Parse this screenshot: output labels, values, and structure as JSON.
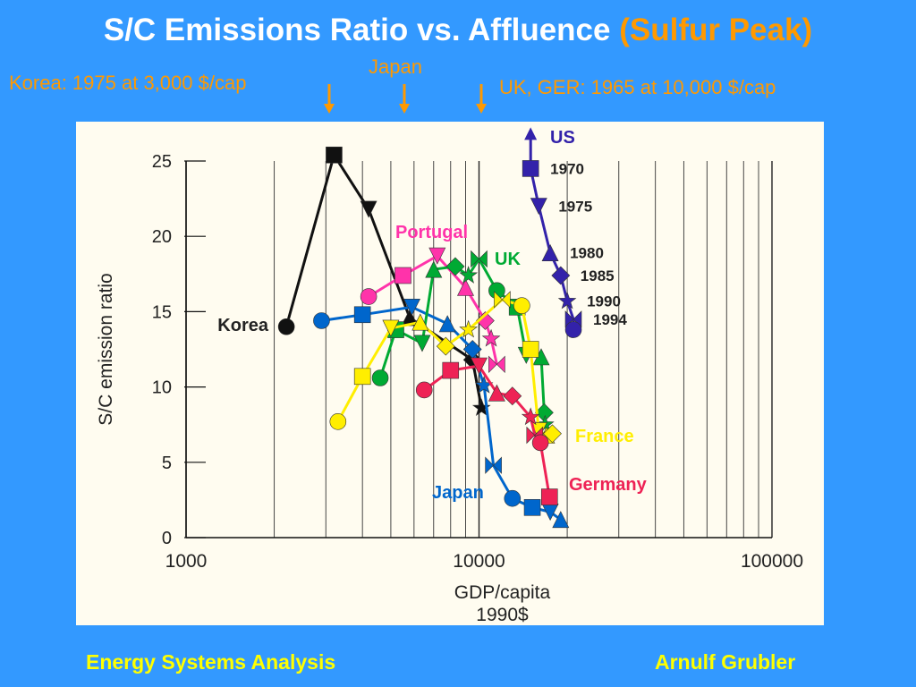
{
  "title": {
    "main": "S/C Emissions Ratio vs. Affluence",
    "highlight": "(Sulfur Peak)"
  },
  "annotations": {
    "korea": "Korea: 1975 at 3,000 $/cap",
    "japan": "Japan",
    "uk_ger": "UK, GER: 1965 at 10,000 $/cap"
  },
  "footer": {
    "left": "Energy Systems Analysis",
    "right": "Arnulf Grubler"
  },
  "colors": {
    "background": "#3399ff",
    "accent": "#ff9900",
    "footer": "#ffff00"
  },
  "chart_data": {
    "type": "line",
    "xlabel": "GDP/capita",
    "xlabel_unit": "1990$",
    "ylabel": "S/C emission ratio",
    "xscale": "log",
    "xlim": [
      1000,
      100000
    ],
    "ylim": [
      0,
      25
    ],
    "xticks": [
      {
        "v": 1000,
        "t": "1000"
      },
      {
        "v": 10000,
        "t": "10000"
      },
      {
        "v": 100000,
        "t": "100000"
      }
    ],
    "yticks": [
      {
        "v": 0,
        "t": "0"
      },
      {
        "v": 5,
        "t": "5"
      },
      {
        "v": 10,
        "t": "10"
      },
      {
        "v": 15,
        "t": "15"
      },
      {
        "v": 20,
        "t": "20"
      },
      {
        "v": 25,
        "t": "25"
      }
    ],
    "grid": "vertical",
    "series": [
      {
        "name": "US",
        "color": "#3322aa",
        "points": [
          [
            15000,
            27
          ],
          [
            15000,
            24.5
          ],
          [
            16000,
            22
          ],
          [
            17500,
            18.9
          ],
          [
            19000,
            17.4
          ],
          [
            20000,
            15.7
          ],
          [
            21000,
            14.5
          ],
          [
            21000,
            13.8
          ]
        ],
        "labels": [
          "1970",
          "1975",
          "1980",
          "1985",
          "1990",
          "1994"
        ]
      },
      {
        "name": "Korea",
        "color": "#111111",
        "points": [
          [
            2200,
            14
          ],
          [
            3200,
            25.4
          ],
          [
            4200,
            21.8
          ],
          [
            5800,
            14.6
          ],
          [
            9500,
            11.8
          ],
          [
            10200,
            8.6
          ]
        ]
      },
      {
        "name": "Portugal",
        "color": "#ff33aa",
        "points": [
          [
            4200,
            16
          ],
          [
            5500,
            17.4
          ],
          [
            7200,
            18.7
          ],
          [
            9000,
            16.6
          ],
          [
            10500,
            14.4
          ],
          [
            11000,
            13.2
          ],
          [
            11500,
            11.5
          ]
        ]
      },
      {
        "name": "Japan",
        "color": "#0066cc",
        "points": [
          [
            2900,
            14.4
          ],
          [
            4000,
            14.8
          ],
          [
            5900,
            15.3
          ],
          [
            7800,
            14.2
          ],
          [
            9500,
            12.5
          ],
          [
            10400,
            10.1
          ],
          [
            11200,
            4.8
          ],
          [
            13000,
            2.6
          ],
          [
            15200,
            2
          ],
          [
            17500,
            1.7
          ],
          [
            19000,
            1.2
          ]
        ]
      },
      {
        "name": "UK",
        "color": "#00aa33",
        "points": [
          [
            4600,
            10.6
          ],
          [
            5200,
            13.8
          ],
          [
            6400,
            12.9
          ],
          [
            7000,
            17.8
          ],
          [
            8300,
            18
          ],
          [
            9200,
            17.4
          ],
          [
            10000,
            18.5
          ],
          [
            11500,
            16.4
          ],
          [
            13500,
            15.3
          ],
          [
            14500,
            12.1
          ],
          [
            16300,
            12
          ],
          [
            16700,
            8.3
          ],
          [
            16800,
            7.5
          ]
        ]
      },
      {
        "name": "France",
        "color": "#ffee00",
        "points": [
          [
            3300,
            7.7
          ],
          [
            4000,
            10.7
          ],
          [
            5000,
            13.9
          ],
          [
            6300,
            14.3
          ],
          [
            7700,
            12.7
          ],
          [
            9200,
            13.8
          ],
          [
            12000,
            15.8
          ],
          [
            14000,
            15.4
          ],
          [
            15000,
            12.5
          ],
          [
            16000,
            7.1
          ],
          [
            17000,
            6.8
          ],
          [
            17800,
            6.9
          ]
        ]
      },
      {
        "name": "Germany",
        "color": "#ee2255",
        "points": [
          [
            6500,
            9.8
          ],
          [
            8000,
            11.1
          ],
          [
            10000,
            11.4
          ],
          [
            11500,
            9.6
          ],
          [
            13000,
            9.4
          ],
          [
            15000,
            8
          ],
          [
            15500,
            6.8
          ],
          [
            16200,
            6.3
          ],
          [
            17400,
            2.7
          ]
        ]
      }
    ]
  }
}
